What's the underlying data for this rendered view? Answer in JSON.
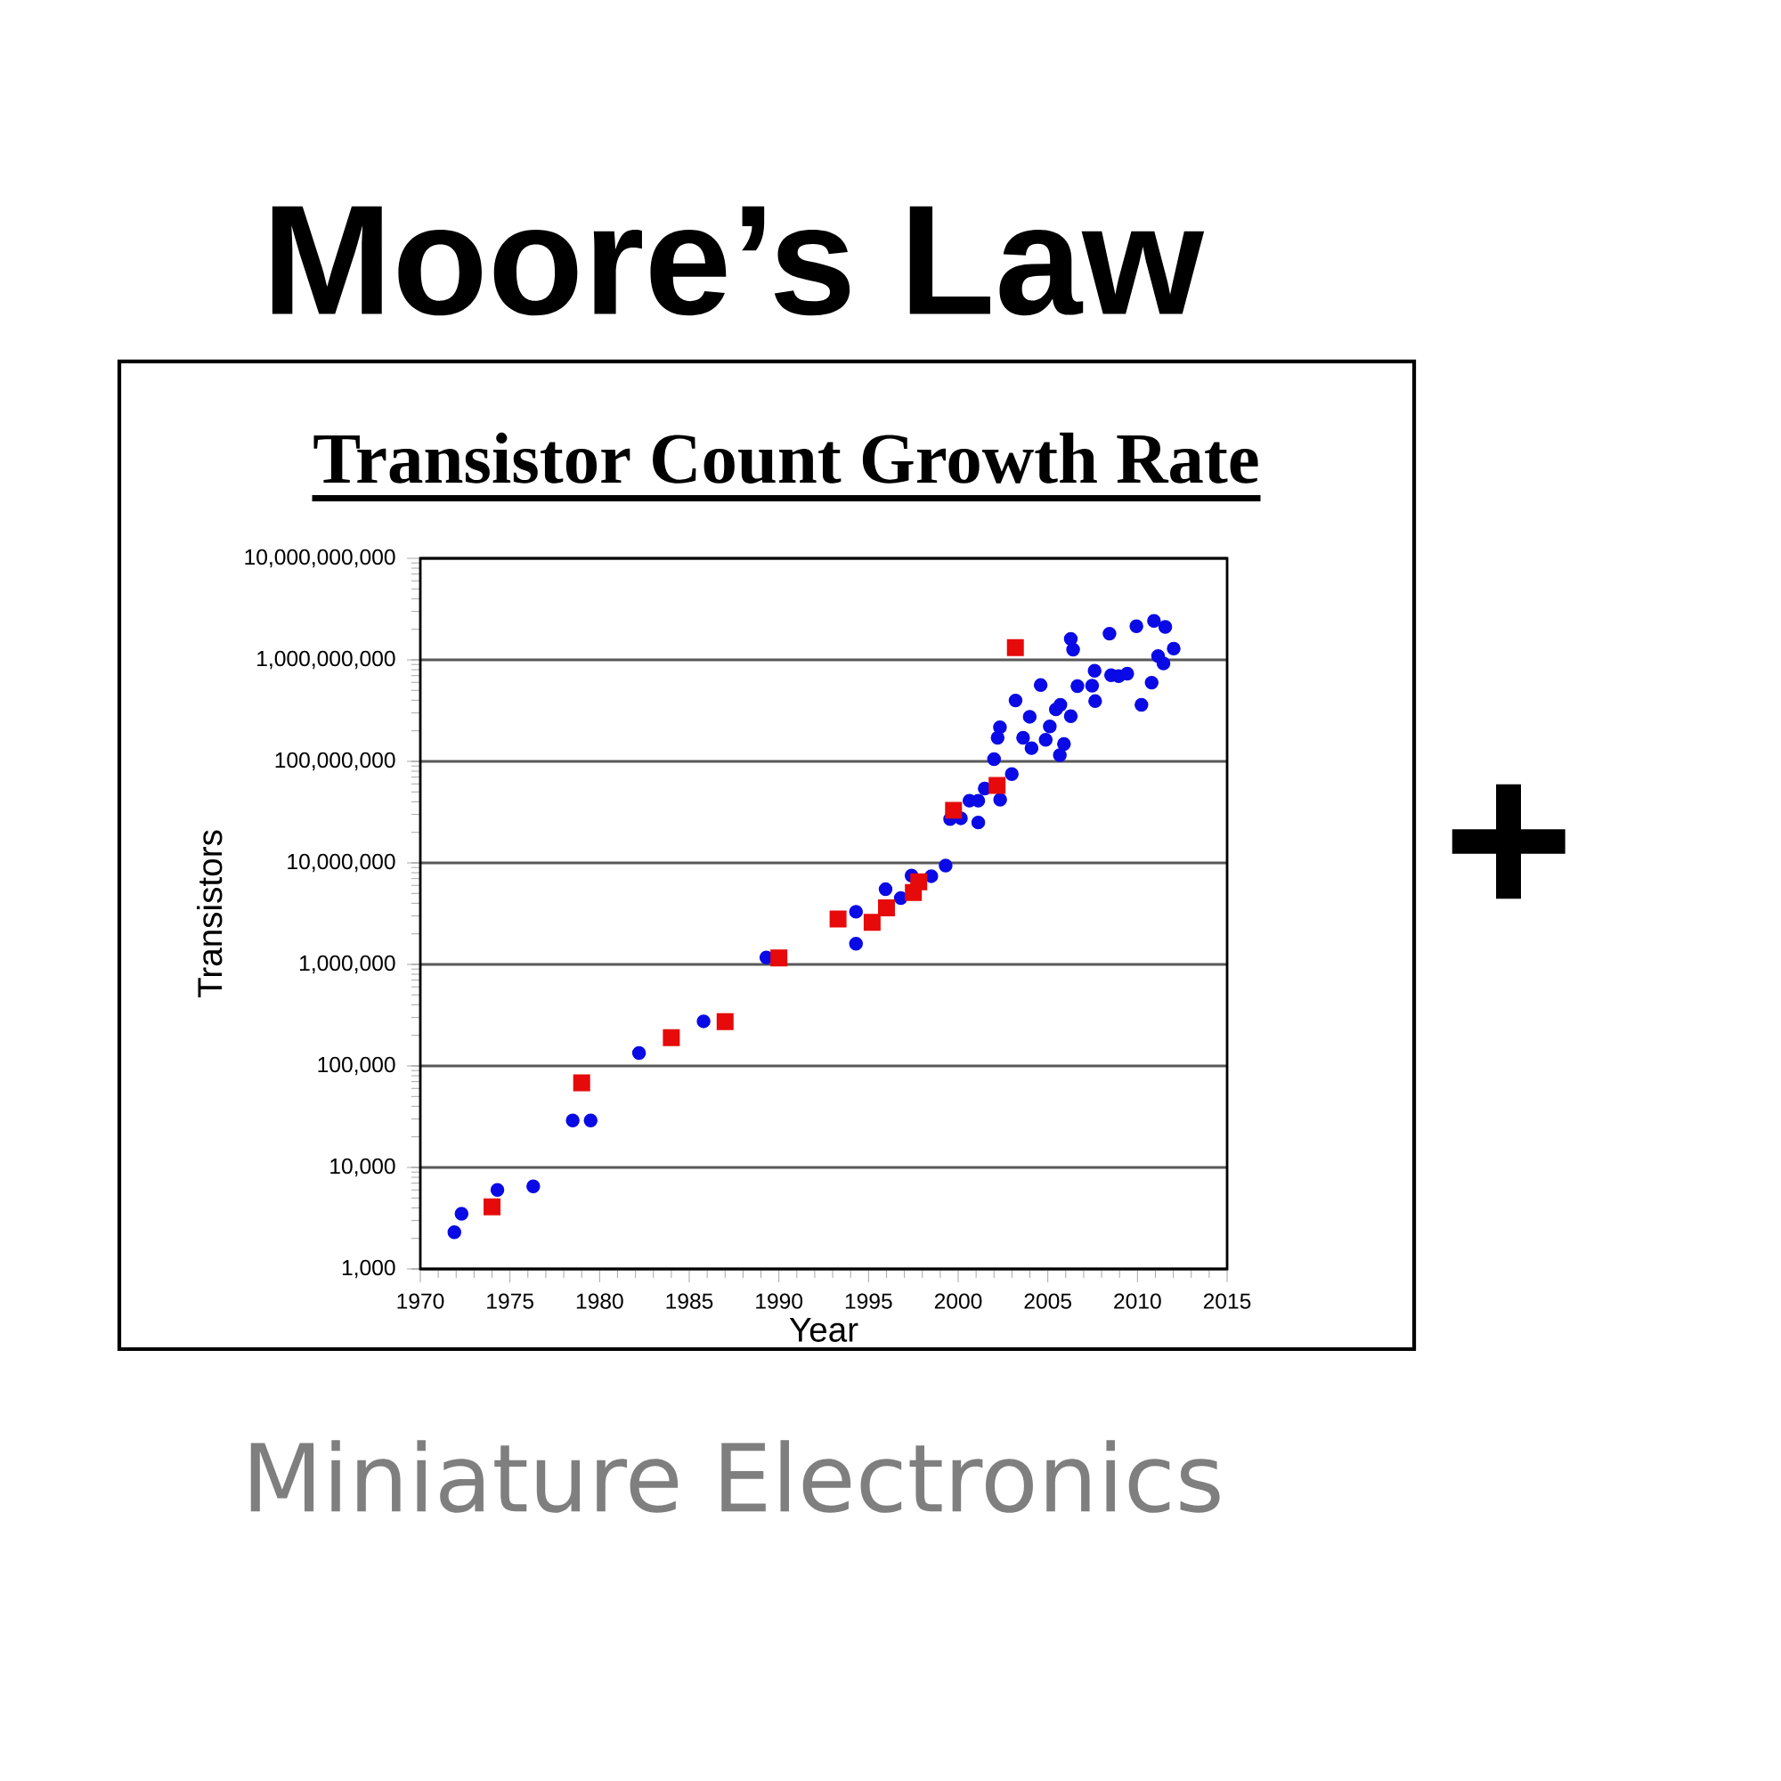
{
  "chart_data": {
    "type": "scatter",
    "title": "Moore’s Law",
    "subtitle": "Transistor Count Growth Rate",
    "annotations": [
      "+",
      "Miniature Electronics"
    ],
    "xlabel": "Year",
    "ylabel": "Transistors",
    "log": "y",
    "grid": "y",
    "xlim": [
      1970,
      2015
    ],
    "xticks": [
      1970,
      1975,
      1980,
      1985,
      1990,
      1995,
      2000,
      2005,
      2010,
      2015
    ],
    "ylim": [
      1000,
      10000000000
    ],
    "yticks": [
      {
        "value": 1000,
        "label": "1,000"
      },
      {
        "value": 10000,
        "label": "10,000"
      },
      {
        "value": 100000,
        "label": "100,000"
      },
      {
        "value": 1000000,
        "label": "1,000,000"
      },
      {
        "value": 10000000,
        "label": "10,000,000"
      },
      {
        "value": 100000000,
        "label": "100,000,000"
      },
      {
        "value": 1000000000,
        "label": "1,000,000,000"
      },
      {
        "value": 10000000000,
        "label": "10,000,000,000"
      }
    ],
    "series": [
      {
        "type": "scatter",
        "marker": "circle",
        "color": "#0a0ae6",
        "x": [
          1971.9,
          1972.3,
          1974.3,
          1976.3,
          1978.5,
          1979.5,
          1982.2,
          1985.8,
          1989.3,
          1993.3,
          1994.3,
          1994.3,
          1995.95,
          1996.8,
          1997.4,
          1998.5,
          1999.3,
          1999.55,
          2000.15,
          2000.63,
          2001.12,
          2001.12,
          2001.48,
          2002.34,
          2002.99,
          2002.0,
          2002.2,
          2002.33,
          2003.2,
          2003.62,
          2004.09,
          2003.99,
          2004.6,
          2004.88,
          2005.11,
          2005.45,
          2005.7,
          2005.9,
          2005.67,
          2006.28,
          2006.28,
          2006.41,
          2006.65,
          2007.47,
          2007.64,
          2007.61,
          2008.44,
          2008.53,
          2008.95,
          2009.43,
          2009.94,
          2010.22,
          2010.79,
          2010.92,
          2011.55,
          2011.15,
          2011.45,
          2012.02
        ],
        "values": [
          2300,
          3500,
          6000,
          6500,
          29000,
          29000,
          134000,
          275000,
          1170000,
          null,
          3300000,
          1600000,
          5500000,
          4500000,
          7500000,
          7400000,
          9400000,
          27000000,
          27500000,
          41000000,
          41000000,
          25000000,
          54000000,
          42000000,
          75000000,
          105000000,
          171000000,
          217000000,
          398000000,
          171000000,
          135000000,
          275000000,
          564000000,
          163000000,
          221000000,
          325000000,
          360000000,
          148000000,
          115000000,
          279000000,
          1610000000,
          1260000000,
          550000000,
          557000000,
          392000000,
          780000000,
          1810000000,
          705000000,
          690000000,
          730000000,
          2140000000,
          360000000,
          596000000,
          2420000000,
          2110000000,
          1090000000,
          923000000,
          1290000000
        ]
      },
      {
        "type": "scatter",
        "marker": "square",
        "color": "#e60a0a",
        "x": [
          1974.0,
          1979.0,
          1984.0,
          1987.0,
          1990.0,
          1993.3,
          1995.2,
          1996.0,
          1997.5,
          1997.8,
          1999.74,
          2002.17,
          2003.19
        ],
        "values": [
          4100,
          68000,
          190000,
          273000,
          1160000,
          2800000,
          2600000,
          3600000,
          5100000,
          6500000,
          33000000,
          58000000,
          1320000000
        ]
      }
    ]
  }
}
